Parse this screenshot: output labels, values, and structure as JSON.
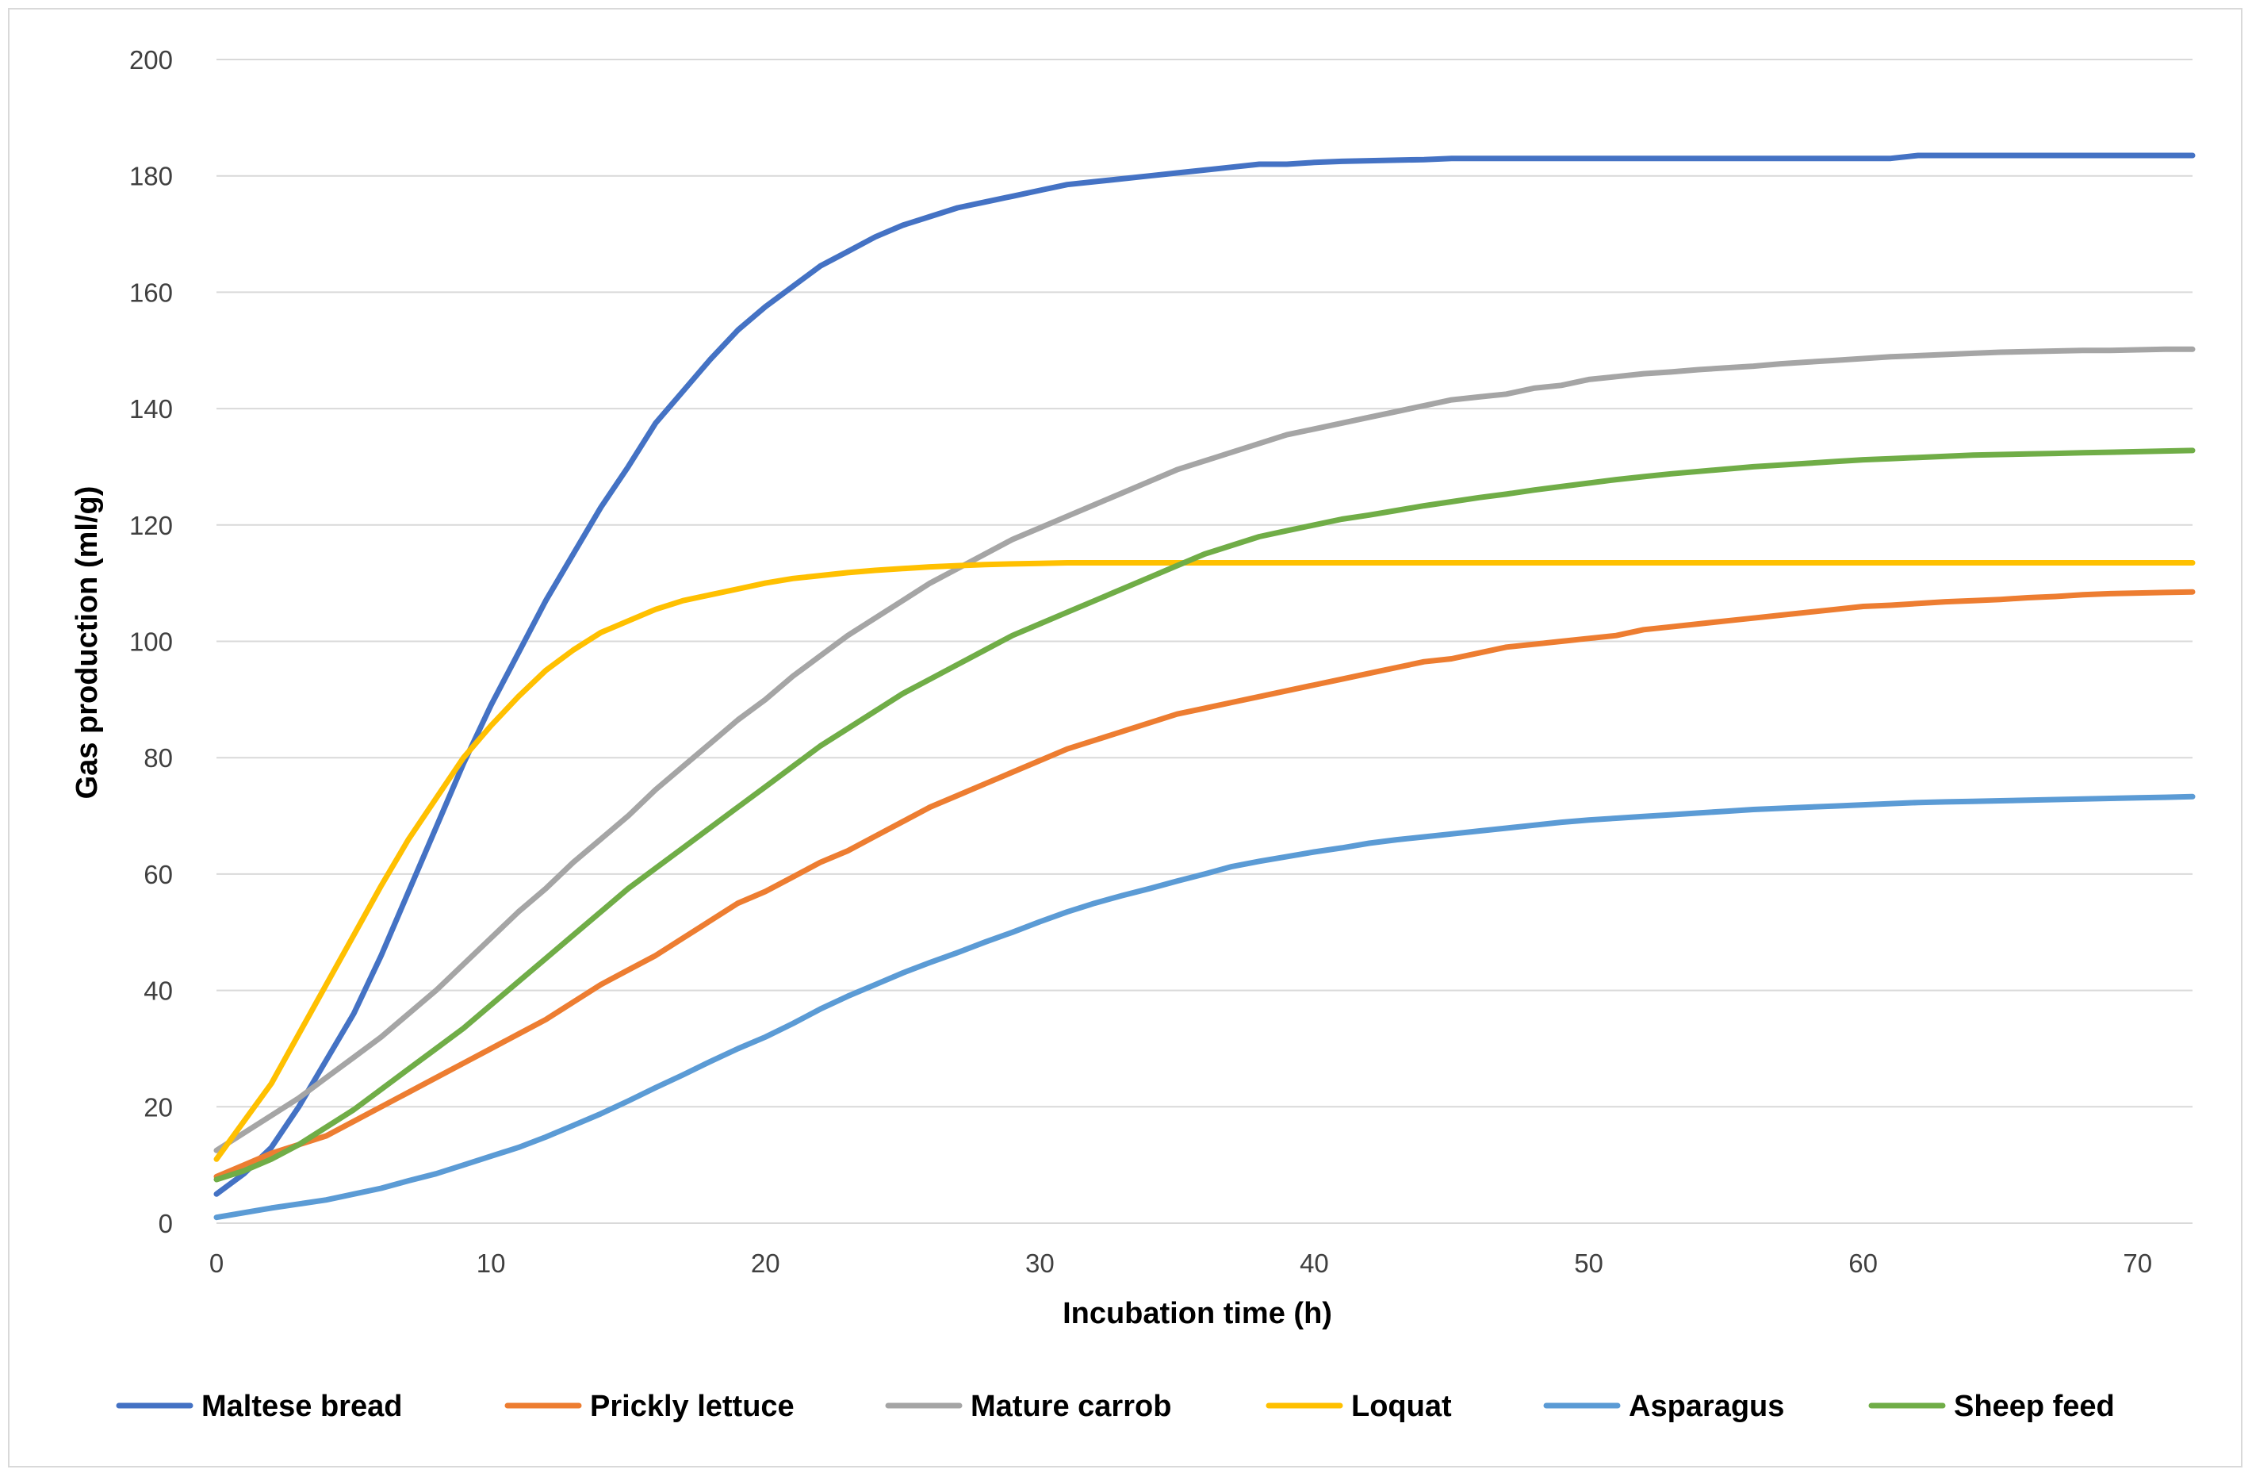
{
  "chart_data": {
    "type": "line",
    "title": "",
    "xlabel": "Incubation time (h)",
    "ylabel": "Gas production (ml/g)",
    "xlim": [
      0,
      72
    ],
    "ylim": [
      0,
      200
    ],
    "x_ticks": [
      0,
      10,
      20,
      30,
      40,
      50,
      60,
      70
    ],
    "y_ticks": [
      0,
      20,
      40,
      60,
      80,
      100,
      120,
      140,
      160,
      180,
      200
    ],
    "grid": "horizontal",
    "legend_position": "bottom",
    "x": [
      0,
      1,
      2,
      3,
      4,
      5,
      6,
      7,
      8,
      9,
      10,
      11,
      12,
      13,
      14,
      15,
      16,
      17,
      18,
      19,
      20,
      21,
      22,
      23,
      24,
      25,
      26,
      27,
      28,
      29,
      30,
      31,
      32,
      33,
      34,
      35,
      36,
      37,
      38,
      39,
      40,
      41,
      42,
      43,
      44,
      45,
      46,
      47,
      48,
      49,
      50,
      51,
      52,
      53,
      54,
      55,
      56,
      57,
      58,
      59,
      60,
      61,
      62,
      63,
      64,
      65,
      66,
      67,
      68,
      69,
      70,
      71,
      72
    ],
    "series": [
      {
        "name": "Maltese bread",
        "color": "#4472C4",
        "values": [
          5,
          8.5,
          13,
          20,
          28,
          36,
          46,
          57,
          68,
          79,
          89,
          98,
          107,
          115,
          123,
          130,
          137.5,
          143,
          148.5,
          153.5,
          157.5,
          161,
          164.5,
          167,
          169.5,
          171.5,
          173,
          174.5,
          175.5,
          176.5,
          177.5,
          178.5,
          179,
          179.5,
          180,
          180.5,
          181,
          181.5,
          182,
          182,
          182.3,
          182.5,
          182.6,
          182.7,
          182.8,
          183,
          183,
          183,
          183,
          183,
          183,
          183,
          183,
          183,
          183,
          183,
          183,
          183,
          183,
          183,
          183,
          183,
          183.5,
          183.5,
          183.5,
          183.5,
          183.5,
          183.5,
          183.5,
          183.5,
          183.5,
          183.5,
          183.5
        ]
      },
      {
        "name": "Prickly lettuce",
        "color": "#ED7D31",
        "values": [
          8,
          10,
          12,
          13.5,
          15,
          17.5,
          20,
          22.5,
          25,
          27.5,
          30,
          32.5,
          35,
          38,
          41,
          43.5,
          46,
          49,
          52,
          55,
          57,
          59.5,
          62,
          64,
          66.5,
          69,
          71.5,
          73.5,
          75.5,
          77.5,
          79.5,
          81.5,
          83,
          84.5,
          86,
          87.5,
          88.5,
          89.5,
          90.5,
          91.5,
          92.5,
          93.5,
          94.5,
          95.5,
          96.5,
          97,
          98,
          99,
          99.5,
          100,
          100.5,
          101,
          102,
          102.5,
          103,
          103.5,
          104,
          104.5,
          105,
          105.5,
          106,
          106.2,
          106.5,
          106.8,
          107,
          107.2,
          107.5,
          107.7,
          108,
          108.2,
          108.3,
          108.4,
          108.5
        ]
      },
      {
        "name": "Mature carrob",
        "color": "#A5A5A5",
        "values": [
          12.5,
          15.5,
          18.5,
          21.5,
          25,
          28.5,
          32,
          36,
          40,
          44.5,
          49,
          53.5,
          57.5,
          62,
          66,
          70,
          74.5,
          78.5,
          82.5,
          86.5,
          90,
          94,
          97.5,
          101,
          104,
          107,
          110,
          112.5,
          115,
          117.5,
          119.5,
          121.5,
          123.5,
          125.5,
          127.5,
          129.5,
          131,
          132.5,
          134,
          135.5,
          136.5,
          137.5,
          138.5,
          139.5,
          140.5,
          141.5,
          142,
          142.5,
          143.5,
          144,
          145,
          145.5,
          146,
          146.3,
          146.7,
          147,
          147.3,
          147.7,
          148,
          148.3,
          148.6,
          148.9,
          149.1,
          149.3,
          149.5,
          149.7,
          149.8,
          149.9,
          150,
          150,
          150.1,
          150.2,
          150.2
        ]
      },
      {
        "name": "Loquat",
        "color": "#FFC000",
        "values": [
          11,
          17.5,
          24,
          32.5,
          41,
          49.5,
          58,
          66,
          73,
          80,
          85.5,
          90.5,
          95,
          98.5,
          101.5,
          103.5,
          105.5,
          107,
          108,
          109,
          110,
          110.8,
          111.3,
          111.8,
          112.2,
          112.5,
          112.8,
          113,
          113.2,
          113.3,
          113.4,
          113.5,
          113.5,
          113.5,
          113.5,
          113.5,
          113.5,
          113.5,
          113.5,
          113.5,
          113.5,
          113.5,
          113.5,
          113.5,
          113.5,
          113.5,
          113.5,
          113.5,
          113.5,
          113.5,
          113.5,
          113.5,
          113.5,
          113.5,
          113.5,
          113.5,
          113.5,
          113.5,
          113.5,
          113.5,
          113.5,
          113.5,
          113.5,
          113.5,
          113.5,
          113.5,
          113.5,
          113.5,
          113.5,
          113.5,
          113.5,
          113.5,
          113.5
        ]
      },
      {
        "name": "Asparagus",
        "color": "#5B9BD5",
        "values": [
          1,
          1.8,
          2.6,
          3.3,
          4,
          5,
          6,
          7.3,
          8.5,
          10,
          11.5,
          13,
          14.8,
          16.8,
          18.8,
          21,
          23.3,
          25.5,
          27.8,
          30,
          32,
          34.3,
          36.8,
          39,
          41,
          43,
          44.8,
          46.5,
          48.3,
          50,
          51.8,
          53.5,
          55,
          56.3,
          57.5,
          58.8,
          60,
          61.3,
          62.2,
          63,
          63.8,
          64.5,
          65.3,
          65.9,
          66.4,
          66.9,
          67.4,
          67.9,
          68.4,
          68.9,
          69.3,
          69.6,
          69.9,
          70.2,
          70.5,
          70.8,
          71.1,
          71.3,
          71.5,
          71.7,
          71.9,
          72.1,
          72.3,
          72.4,
          72.5,
          72.6,
          72.7,
          72.8,
          72.9,
          73,
          73.1,
          73.2,
          73.3
        ]
      },
      {
        "name": "Sheep feed",
        "color": "#70AD47",
        "values": [
          7.5,
          9,
          11,
          13.5,
          16.5,
          19.5,
          23,
          26.5,
          30,
          33.5,
          37.5,
          41.5,
          45.5,
          49.5,
          53.5,
          57.5,
          61,
          64.5,
          68,
          71.5,
          75,
          78.5,
          82,
          85,
          88,
          91,
          93.5,
          96,
          98.5,
          101,
          103,
          105,
          107,
          109,
          111,
          113,
          115,
          116.5,
          118,
          119,
          120,
          121,
          121.7,
          122.5,
          123.3,
          124,
          124.7,
          125.3,
          126,
          126.6,
          127.2,
          127.8,
          128.3,
          128.8,
          129.2,
          129.6,
          130,
          130.3,
          130.6,
          130.9,
          131.2,
          131.4,
          131.6,
          131.8,
          132,
          132.1,
          132.2,
          132.3,
          132.4,
          132.5,
          132.6,
          132.7,
          132.8
        ]
      }
    ]
  }
}
